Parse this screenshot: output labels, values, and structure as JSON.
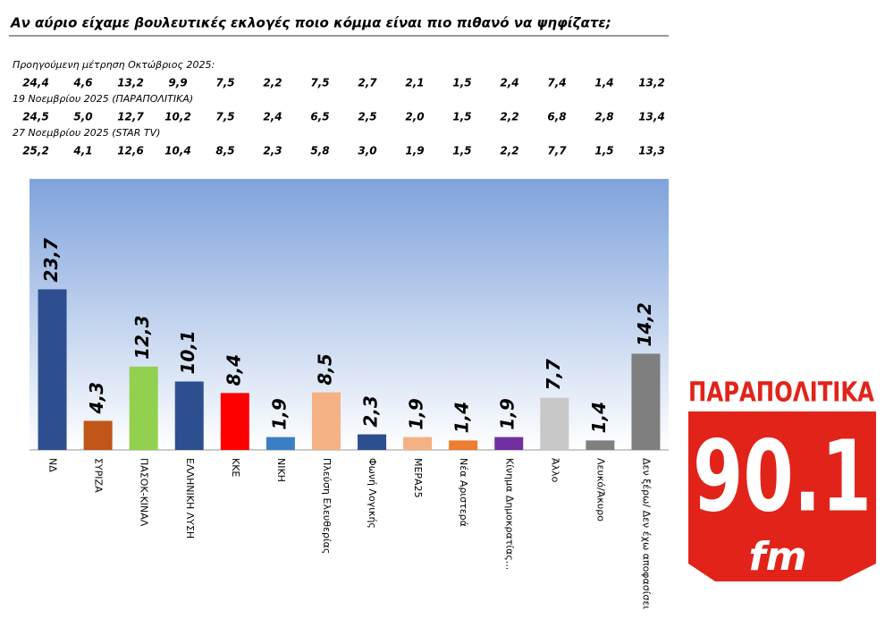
{
  "title": "Αν αύριο είχαμε βουλευτικές εκλογές ποιο κόμμα είναι πιο πιθανό να ψηφίζατε;",
  "comparison": {
    "rows": [
      {
        "label": "Προηγούμενη μέτρηση Οκτώβριος 2025:",
        "values": [
          "24,4",
          "4,6",
          "13,2",
          "9,9",
          "7,5",
          "2,2",
          "7,5",
          "2,7",
          "2,1",
          "1,5",
          "2,4",
          "7,4",
          "1,4",
          "13,2"
        ]
      },
      {
        "label": "19 Νοεμβρίου 2025 (ΠΑΡΑΠΟΛΙΤΙΚΑ)",
        "values": [
          "24,5",
          "5,0",
          "12,7",
          "10,2",
          "7,5",
          "2,4",
          "6,5",
          "2,5",
          "2,0",
          "1,5",
          "2,2",
          "6,8",
          "2,8",
          "13,4"
        ]
      },
      {
        "label": "27 Νοεμβρίου 2025 (STAR TV)",
        "values": [
          "25,2",
          "4,1",
          "12,6",
          "10,4",
          "8,5",
          "2,3",
          "5,8",
          "3,0",
          "1,9",
          "1,5",
          "2,2",
          "7,7",
          "1,5",
          "13,3"
        ]
      }
    ]
  },
  "chart_data": {
    "type": "bar",
    "categories": [
      "ΝΔ",
      "ΣΥΡΙΖΑ",
      "ΠΑΣΟΚ-ΚΙΝΑΛ",
      "ΕΛΛΗΝΙΚΗ ΛΥΣΗ",
      "ΚΚΕ",
      "ΝΙΚΗ",
      "Πλεύση Ελευθερίας",
      "Φωνή Λογικής",
      "ΜΕΡΑ25",
      "Νέα Αριστερά",
      "Κίνημα Δημοκρατίας...",
      "Άλλο",
      "Λευκό/Άκυρο",
      "Δεν ξέρω/ Δεν έχω αποφασίσει"
    ],
    "values": [
      23.7,
      4.3,
      12.3,
      10.1,
      8.4,
      1.9,
      8.5,
      2.3,
      1.9,
      1.4,
      1.9,
      7.7,
      1.4,
      14.2
    ],
    "value_labels": [
      "23,7",
      "4,3",
      "12,3",
      "10,1",
      "8,4",
      "1,9",
      "8,5",
      "2,3",
      "1,9",
      "1,4",
      "1,9",
      "7,7",
      "1,4",
      "14,2"
    ],
    "colors": [
      "#2e4f8f",
      "#c0561a",
      "#92d050",
      "#2e4f8f",
      "#ff0000",
      "#3a7fc4",
      "#f4b183",
      "#2e4f8f",
      "#f4b183",
      "#ed7d31",
      "#7030a0",
      "#c8c8c8",
      "#7f7f7f",
      "#7f7f7f"
    ],
    "ylim": [
      0,
      40
    ]
  },
  "logo": {
    "name": "ΠΑΡΑΠΟΛΙΤΙΚΑ",
    "frequency": "90.1",
    "band": "fm"
  }
}
